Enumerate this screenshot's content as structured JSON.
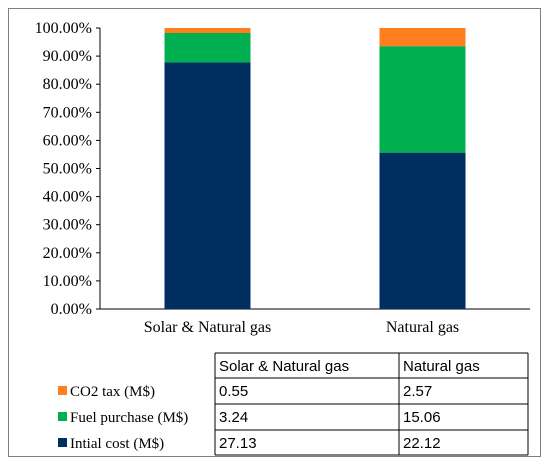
{
  "chart_data": {
    "type": "bar",
    "stacked": true,
    "percent_stacked": true,
    "categories": [
      "Solar & Natural gas",
      "Natural gas"
    ],
    "series": [
      {
        "name": "Intial cost (M$)",
        "color": "#002e60",
        "values": [
          27.13,
          22.12
        ]
      },
      {
        "name": "Fuel purchase (M$)",
        "color": "#00b050",
        "values": [
          3.24,
          15.06
        ]
      },
      {
        "name": "CO2 tax (M$)",
        "color": "#ff7f1e",
        "values": [
          0.55,
          2.57
        ]
      }
    ],
    "data_table": {
      "headers": [
        "Solar & Natural gas",
        "Natural gas"
      ],
      "rows": [
        {
          "label": "CO2 tax (M$)",
          "values": [
            "0.55",
            "2.57"
          ]
        },
        {
          "label": "Fuel purchase (M$)",
          "values": [
            "3.24",
            "15.06"
          ]
        },
        {
          "label": "Intial cost (M$)",
          "values": [
            "27.13",
            "22.12"
          ]
        }
      ]
    },
    "y_ticks": [
      "0.00%",
      "10.00%",
      "20.00%",
      "30.00%",
      "40.00%",
      "50.00%",
      "60.00%",
      "70.00%",
      "80.00%",
      "90.00%",
      "100.00%"
    ],
    "ylim": [
      0,
      100
    ],
    "grid": false,
    "legend": "bottom-left, within data table"
  }
}
